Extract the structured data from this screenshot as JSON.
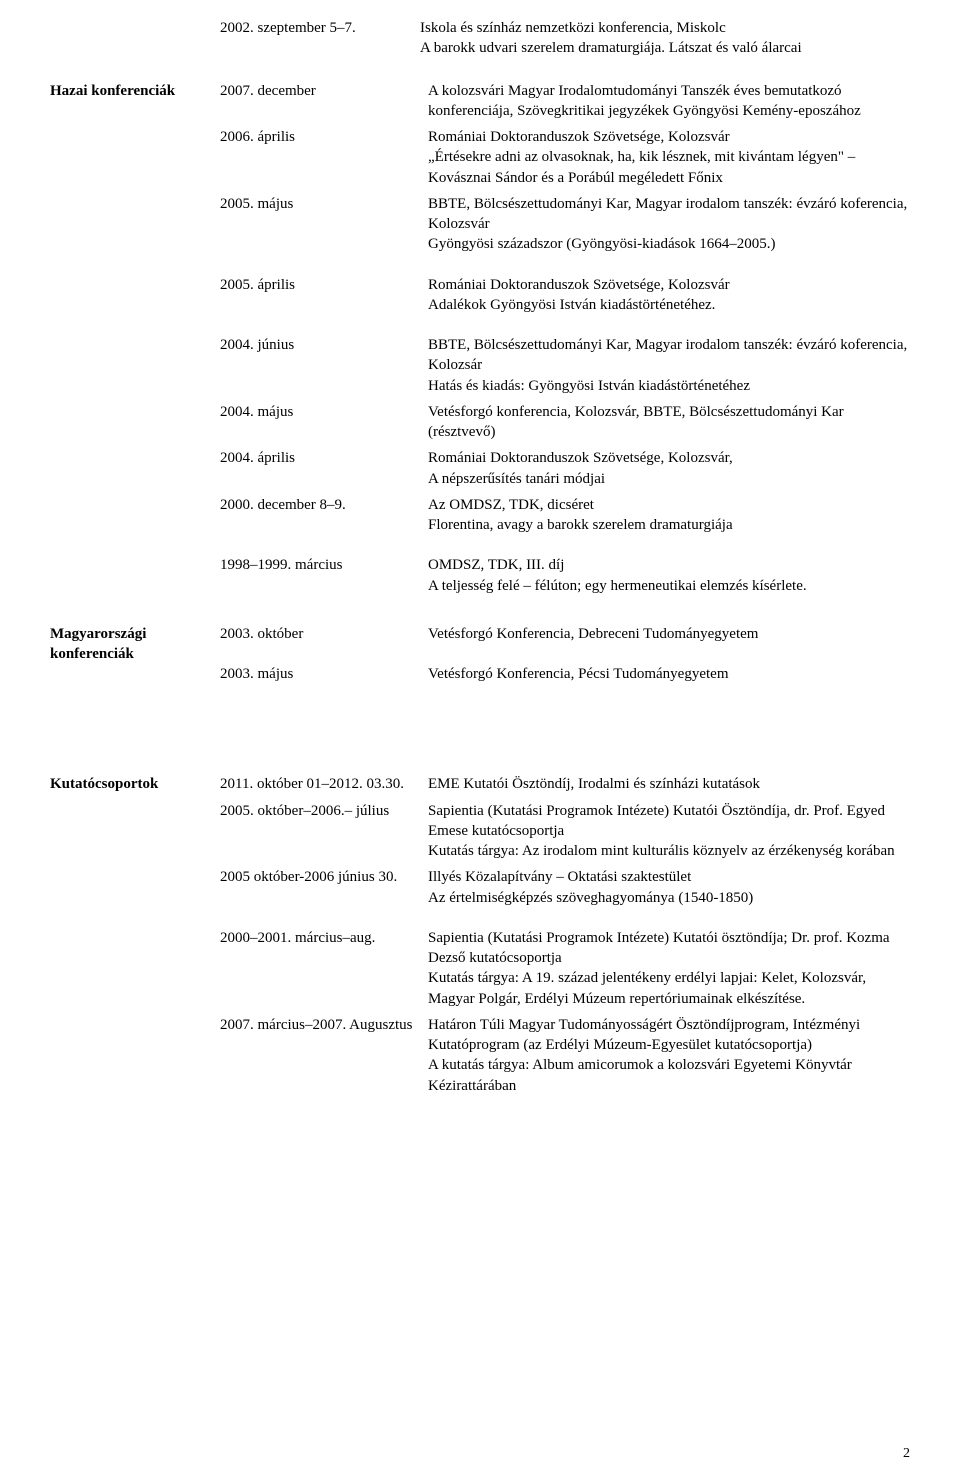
{
  "top": {
    "date": "2002. szeptember 5–7.",
    "desc": "Iskola és színház nemzetközi konferencia, Miskolc\nA barokk udvari szerelem dramaturgiája. Látszat és való álarcai"
  },
  "hazai": {
    "label": "Hazai konferenciák",
    "rows": [
      {
        "date": "2007. december",
        "desc": "A kolozsvári Magyar Irodalomtudományi Tanszék éves bemutatkozó konferenciája, Szövegkritikai jegyzékek Gyöngyösi Kemény-eposzához"
      },
      {
        "date": "2006. április",
        "desc": "Romániai Doktoranduszok Szövetsége, Kolozsvár\n„Értésekre adni az olvasoknak, ha, kik lésznek, mit kivántam légyen\" – Kovásznai Sándor és a Porábúl megéledett Főnix"
      },
      {
        "date": "2005. május",
        "desc": "BBTE, Bölcsészettudományi Kar, Magyar irodalom tanszék: évzáró koferencia, Kolozsvár\nGyöngyösi századszor (Gyöngyösi-kiadások 1664–2005.)"
      }
    ],
    "rows2": [
      {
        "date": "2005. április",
        "desc": "Romániai Doktoranduszok Szövetsége, Kolozsvár\nAdalékok Gyöngyösi István kiadástörténetéhez."
      }
    ],
    "rows3": [
      {
        "date": "2004. június",
        "desc": "BBTE, Bölcsészettudományi Kar, Magyar irodalom tanszék: évzáró koferencia, Kolozsár\nHatás és kiadás: Gyöngyösi István kiadástörténetéhez"
      },
      {
        "date": "2004. május",
        "desc": "Vetésforgó konferencia, Kolozsvár, BBTE, Bölcsészettudományi Kar (résztvevő)"
      },
      {
        "date": "2004. április",
        "desc": "Romániai Doktoranduszok Szövetsége, Kolozsvár,\nA népszerűsítés tanári módjai"
      },
      {
        "date": "2000. december 8–9.",
        "desc": "Az OMDSZ, TDK, dicséret\nFlorentina, avagy a barokk szerelem dramaturgiája"
      }
    ],
    "rows4": [
      {
        "date": "1998–1999. március",
        "desc": "OMDSZ, TDK, III. díj\nA teljesség felé – félúton; egy hermeneutikai elemzés kísérlete."
      }
    ]
  },
  "magyar": {
    "label": "Magyarországi konferenciák",
    "rows": [
      {
        "date": "2003. október",
        "desc": "Vetésforgó Konferencia, Debreceni Tudományegyetem"
      }
    ],
    "rows2": [
      {
        "date": "2003. május",
        "desc": "Vetésforgó Konferencia, Pécsi Tudományegyetem"
      }
    ]
  },
  "kutato": {
    "label": "Kutatócsoportok",
    "rows": [
      {
        "date": "2011. október 01–2012. 03.30.",
        "desc": "EME Kutatói Ösztöndíj, Irodalmi és színházi kutatások"
      },
      {
        "date": "2005. október–2006.– július",
        "desc": "Sapientia (Kutatási Programok Intézete) Kutatói Ösztöndíja, dr. Prof. Egyed Emese kutatócsoportja\nKutatás tárgya: Az irodalom mint kulturális köznyelv az érzékenység korában"
      },
      {
        "date": "2005 október-2006 június 30.",
        "desc": "Illyés Közalapítvány – Oktatási szaktestület\nAz értelmiségképzés szöveghagyománya (1540-1850)"
      }
    ],
    "rows2": [
      {
        "date": "2000–2001. március–aug.",
        "desc": "Sapientia (Kutatási Programok Intézete) Kutatói ösztöndíja; Dr. prof. Kozma Dezső kutatócsoportja\nKutatás tárgya: A 19. század jelentékeny erdélyi lapjai: Kelet, Kolozsvár, Magyar Polgár, Erdélyi Múzeum repertóriumainak elkészítése."
      },
      {
        "date": "2007. március–2007. Augusztus",
        "desc": "Határon Túli Magyar Tudományosságért Ösztöndíjprogram, Intézményi Kutatóprogram (az Erdélyi Múzeum-Egyesület kutatócsoportja)\nA kutatás tárgya: Album amicorumok a kolozsvári Egyetemi Könyvtár Kézirattárában"
      }
    ]
  },
  "page": "2"
}
